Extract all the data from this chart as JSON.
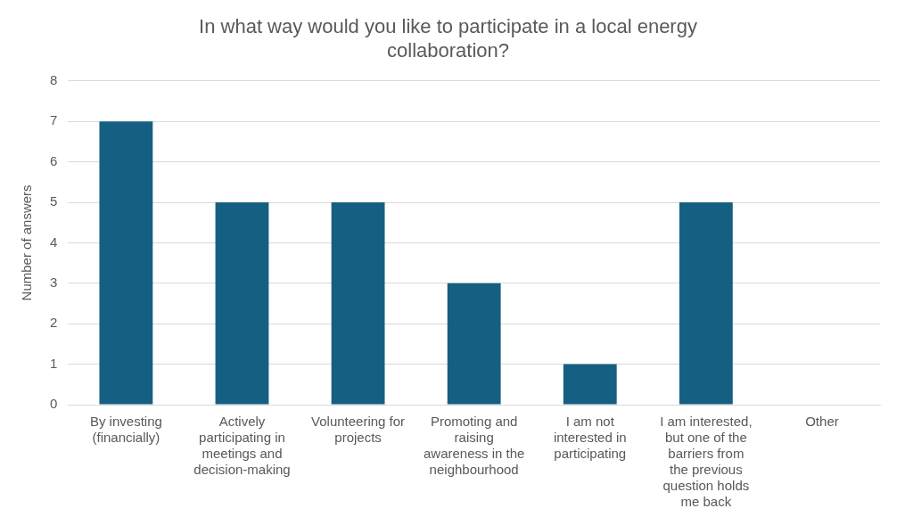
{
  "chart_data": {
    "type": "bar",
    "title": "In what way would you like to participate in a local energy collaboration?",
    "ylabel": "Number of answers",
    "categories": [
      "By investing (financially)",
      "Actively participating in meetings and decision-making",
      "Volunteering for projects",
      "Promoting and raising awareness in the neighbourhood",
      "I am not interested in participating",
      "I am interested, but one of the barriers from the previous question holds me back",
      "Other"
    ],
    "values": [
      7,
      5,
      5,
      3,
      1,
      5,
      0
    ],
    "color": "#156082",
    "ylim": [
      0,
      8
    ],
    "yticks": [
      0,
      1,
      2,
      3,
      4,
      5,
      6,
      7,
      8
    ],
    "grid": "y",
    "legend": false
  }
}
